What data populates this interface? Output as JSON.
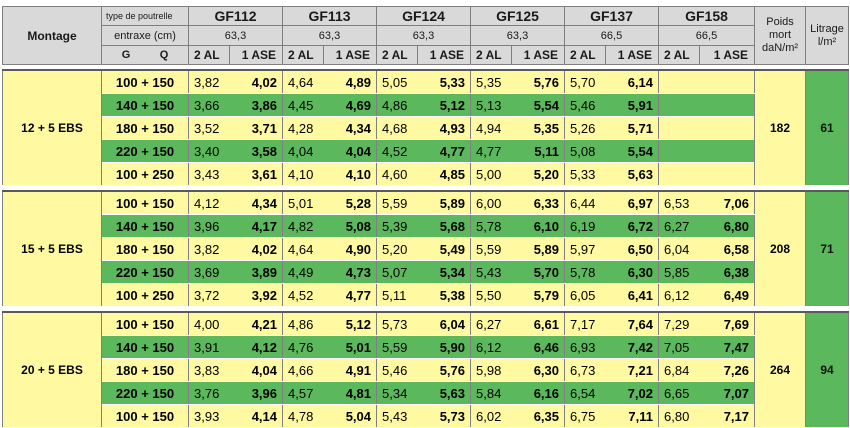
{
  "header": {
    "type_label": "type de poutrelle",
    "entraxe_label": "entraxe (cm)",
    "montage_label": "Montage",
    "g_label": "G",
    "q_label": "Q",
    "poids_label": [
      "Poids",
      "mort",
      "daN/m²"
    ],
    "litrage_label": [
      "Litrage",
      "l/m²"
    ],
    "products": [
      {
        "name": "GF112",
        "entraxe": "63,3",
        "al": "2 AL",
        "ase": "1 ASE"
      },
      {
        "name": "GF113",
        "entraxe": "63,3",
        "al": "2 AL",
        "ase": "1 ASE"
      },
      {
        "name": "GF124",
        "entraxe": "63,3",
        "al": "2 AL",
        "ase": "1 ASE"
      },
      {
        "name": "GF125",
        "entraxe": "63,3",
        "al": "2 AL",
        "ase": "1 ASE"
      },
      {
        "name": "GF137",
        "entraxe": "66,5",
        "al": "2 AL",
        "ase": "1 ASE"
      },
      {
        "name": "GF158",
        "entraxe": "66,5",
        "al": "2 AL",
        "ase": "1 ASE"
      }
    ]
  },
  "groups": [
    {
      "montage": "12 + 5 EBS",
      "poids": "182",
      "litrage": "61",
      "rows": [
        {
          "gq": "100 + 150",
          "vals": [
            [
              "3,82",
              "4,02"
            ],
            [
              "4,64",
              "4,89"
            ],
            [
              "5,05",
              "5,33"
            ],
            [
              "5,35",
              "5,76"
            ],
            [
              "5,70",
              "6,14"
            ],
            [
              "",
              ""
            ]
          ]
        },
        {
          "gq": "140 + 150",
          "vals": [
            [
              "3,66",
              "3,86"
            ],
            [
              "4,45",
              "4,69"
            ],
            [
              "4,86",
              "5,12"
            ],
            [
              "5,13",
              "5,54"
            ],
            [
              "5,46",
              "5,91"
            ],
            [
              "",
              ""
            ]
          ]
        },
        {
          "gq": "180 + 150",
          "vals": [
            [
              "3,52",
              "3,71"
            ],
            [
              "4,28",
              "4,34"
            ],
            [
              "4,68",
              "4,93"
            ],
            [
              "4,94",
              "5,35"
            ],
            [
              "5,26",
              "5,71"
            ],
            [
              "",
              ""
            ]
          ]
        },
        {
          "gq": "220 + 150",
          "vals": [
            [
              "3,40",
              "3,58"
            ],
            [
              "4,04",
              "4,04"
            ],
            [
              "4,52",
              "4,77"
            ],
            [
              "4,77",
              "5,11"
            ],
            [
              "5,08",
              "5,54"
            ],
            [
              "",
              ""
            ]
          ]
        },
        {
          "gq": "100 + 250",
          "vals": [
            [
              "3,43",
              "3,61"
            ],
            [
              "4,10",
              "4,10"
            ],
            [
              "4,60",
              "4,85"
            ],
            [
              "5,00",
              "5,20"
            ],
            [
              "5,33",
              "5,63"
            ],
            [
              "",
              ""
            ]
          ]
        }
      ]
    },
    {
      "montage": "15 + 5 EBS",
      "poids": "208",
      "litrage": "71",
      "rows": [
        {
          "gq": "100 + 150",
          "vals": [
            [
              "4,12",
              "4,34"
            ],
            [
              "5,01",
              "5,28"
            ],
            [
              "5,59",
              "5,89"
            ],
            [
              "6,00",
              "6,33"
            ],
            [
              "6,44",
              "6,97"
            ],
            [
              "6,53",
              "7,06"
            ]
          ]
        },
        {
          "gq": "140 + 150",
          "vals": [
            [
              "3,96",
              "4,17"
            ],
            [
              "4,82",
              "5,08"
            ],
            [
              "5,39",
              "5,68"
            ],
            [
              "5,78",
              "6,10"
            ],
            [
              "6,19",
              "6,72"
            ],
            [
              "6,27",
              "6,80"
            ]
          ]
        },
        {
          "gq": "180 + 150",
          "vals": [
            [
              "3,82",
              "4,02"
            ],
            [
              "4,64",
              "4,90"
            ],
            [
              "5,20",
              "5,49"
            ],
            [
              "5,59",
              "5,89"
            ],
            [
              "5,97",
              "6,50"
            ],
            [
              "6,04",
              "6,58"
            ]
          ]
        },
        {
          "gq": "220 + 150",
          "vals": [
            [
              "3,69",
              "3,89"
            ],
            [
              "4,49",
              "4,73"
            ],
            [
              "5,07",
              "5,34"
            ],
            [
              "5,43",
              "5,70"
            ],
            [
              "5,78",
              "6,30"
            ],
            [
              "5,85",
              "6,38"
            ]
          ]
        },
        {
          "gq": "100 + 250",
          "vals": [
            [
              "3,72",
              "3,92"
            ],
            [
              "4,52",
              "4,77"
            ],
            [
              "5,11",
              "5,38"
            ],
            [
              "5,50",
              "5,79"
            ],
            [
              "6,05",
              "6,41"
            ],
            [
              "6,12",
              "6,49"
            ]
          ]
        }
      ]
    },
    {
      "montage": "20 + 5 EBS",
      "poids": "264",
      "litrage": "94",
      "rows": [
        {
          "gq": "100 + 150",
          "vals": [
            [
              "4,00",
              "4,21"
            ],
            [
              "4,86",
              "5,12"
            ],
            [
              "5,73",
              "6,04"
            ],
            [
              "6,27",
              "6,61"
            ],
            [
              "7,17",
              "7,64"
            ],
            [
              "7,29",
              "7,69"
            ]
          ]
        },
        {
          "gq": "140 + 150",
          "vals": [
            [
              "3,91",
              "4,12"
            ],
            [
              "4,76",
              "5,01"
            ],
            [
              "5,59",
              "5,90"
            ],
            [
              "6,12",
              "6,46"
            ],
            [
              "6,93",
              "7,42"
            ],
            [
              "7,05",
              "7,47"
            ]
          ]
        },
        {
          "gq": "180 + 150",
          "vals": [
            [
              "3,83",
              "4,04"
            ],
            [
              "4,66",
              "4,91"
            ],
            [
              "5,46",
              "5,76"
            ],
            [
              "5,98",
              "6,30"
            ],
            [
              "6,73",
              "7,21"
            ],
            [
              "6,84",
              "7,26"
            ]
          ]
        },
        {
          "gq": "220 + 150",
          "vals": [
            [
              "3,76",
              "3,96"
            ],
            [
              "4,57",
              "4,81"
            ],
            [
              "5,34",
              "5,63"
            ],
            [
              "5,84",
              "6,16"
            ],
            [
              "6,54",
              "7,02"
            ],
            [
              "6,65",
              "7,07"
            ]
          ]
        },
        {
          "gq": "100 + 150",
          "vals": [
            [
              "3,93",
              "4,14"
            ],
            [
              "4,78",
              "5,04"
            ],
            [
              "5,43",
              "5,73"
            ],
            [
              "6,02",
              "6,35"
            ],
            [
              "6,75",
              "7,11"
            ],
            [
              "6,80",
              "7,17"
            ]
          ]
        }
      ]
    }
  ],
  "colors": {
    "yellow": "#fff9a1",
    "green": "#5cb85c",
    "header_gray": "#d9d9d9"
  }
}
